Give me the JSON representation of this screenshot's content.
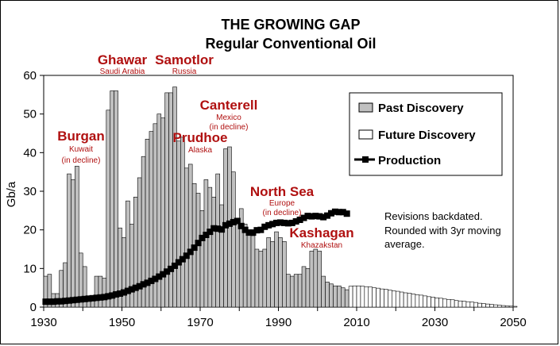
{
  "chart_data": {
    "type": "bar",
    "title": "THE GROWING GAP",
    "subtitle": "Regular Conventional Oil",
    "ylabel": "Gb/a",
    "xlabel": "",
    "ylim": [
      0,
      60
    ],
    "xlim": [
      1930,
      2050
    ],
    "y_ticks": [
      "0",
      "10",
      "20",
      "30",
      "40",
      "50",
      "60"
    ],
    "x_ticks": [
      "1930",
      "1950",
      "1970",
      "1990",
      "2010",
      "2030",
      "2050"
    ],
    "legend": {
      "placement": "top-right",
      "entries": [
        "Past Discovery",
        "Future Discovery",
        "Production"
      ]
    },
    "series": [
      {
        "name": "Past Discovery",
        "x": [
          1930,
          1931,
          1932,
          1933,
          1934,
          1935,
          1936,
          1937,
          1938,
          1939,
          1940,
          1941,
          1942,
          1943,
          1944,
          1945,
          1946,
          1947,
          1948,
          1949,
          1950,
          1951,
          1952,
          1953,
          1954,
          1955,
          1956,
          1957,
          1958,
          1959,
          1960,
          1961,
          1962,
          1963,
          1964,
          1965,
          1966,
          1967,
          1968,
          1969,
          1970,
          1971,
          1972,
          1973,
          1974,
          1975,
          1976,
          1977,
          1978,
          1979,
          1980,
          1981,
          1982,
          1983,
          1984,
          1985,
          1986,
          1987,
          1988,
          1989,
          1990,
          1991,
          1992,
          1993,
          1994,
          1995,
          1996,
          1997,
          1998,
          1999,
          2000,
          2001,
          2002,
          2003,
          2004,
          2005,
          2006,
          2007
        ],
        "values": [
          8,
          8.5,
          3.5,
          3.5,
          9.5,
          11.5,
          34.5,
          33,
          36.5,
          14,
          10.5,
          2.5,
          2.5,
          8,
          8,
          7.5,
          51,
          56,
          56,
          20.5,
          18,
          27.5,
          21.5,
          28.5,
          33.5,
          39,
          43.5,
          45.5,
          47.5,
          50,
          49,
          55.5,
          55.5,
          57,
          43,
          44,
          36,
          37,
          32,
          29.5,
          25,
          33,
          31,
          28.5,
          34.5,
          26.5,
          41,
          41.5,
          35,
          22.5,
          25.5,
          21.5,
          20,
          18.5,
          15,
          14.5,
          15,
          18,
          17,
          19.5,
          18,
          17,
          8.5,
          8,
          8.5,
          8.5,
          10.5,
          10,
          14.5,
          15,
          14.5,
          8,
          6.5,
          6,
          5.5,
          5.5,
          5,
          4.5
        ]
      },
      {
        "name": "Future Discovery",
        "x": [
          2008,
          2009,
          2010,
          2011,
          2012,
          2013,
          2014,
          2015,
          2016,
          2017,
          2018,
          2019,
          2020,
          2021,
          2022,
          2023,
          2024,
          2025,
          2026,
          2027,
          2028,
          2029,
          2030,
          2031,
          2032,
          2033,
          2034,
          2035,
          2036,
          2037,
          2038,
          2039,
          2040,
          2041,
          2042,
          2043,
          2044,
          2045,
          2046,
          2047,
          2048,
          2049,
          2050
        ],
        "values": [
          5.4,
          5.5,
          5.5,
          5.4,
          5.3,
          5.2,
          5.0,
          4.9,
          4.7,
          4.6,
          4.4,
          4.2,
          4.1,
          3.9,
          3.7,
          3.6,
          3.4,
          3.2,
          3.1,
          2.9,
          2.7,
          2.6,
          2.4,
          2.3,
          2.1,
          2.0,
          1.9,
          1.7,
          1.6,
          1.5,
          1.4,
          1.3,
          1.2,
          1.0,
          0.9,
          0.8,
          0.7,
          0.6,
          0.5,
          0.4,
          0.3,
          0.25,
          0.2
        ]
      },
      {
        "name": "Production",
        "x": [
          1930,
          1931,
          1932,
          1933,
          1934,
          1935,
          1936,
          1937,
          1938,
          1939,
          1940,
          1941,
          1942,
          1943,
          1944,
          1945,
          1946,
          1947,
          1948,
          1949,
          1950,
          1951,
          1952,
          1953,
          1954,
          1955,
          1956,
          1957,
          1958,
          1959,
          1960,
          1961,
          1962,
          1963,
          1964,
          1965,
          1966,
          1967,
          1968,
          1969,
          1970,
          1971,
          1972,
          1973,
          1974,
          1975,
          1976,
          1977,
          1978,
          1979,
          1980,
          1981,
          1982,
          1983,
          1984,
          1985,
          1986,
          1987,
          1988,
          1989,
          1990,
          1991,
          1992,
          1993,
          1994,
          1995,
          1996,
          1997,
          1998,
          1999,
          2000,
          2001,
          2002,
          2003,
          2004,
          2005,
          2006,
          2007
        ],
        "values": [
          1.4,
          1.4,
          1.4,
          1.5,
          1.5,
          1.6,
          1.7,
          1.8,
          1.9,
          2.0,
          2.1,
          2.2,
          2.3,
          2.4,
          2.5,
          2.6,
          2.8,
          3.0,
          3.3,
          3.5,
          3.8,
          4.2,
          4.6,
          5.0,
          5.4,
          5.9,
          6.3,
          6.8,
          7.3,
          7.9,
          8.5,
          9.2,
          9.9,
          10.7,
          11.6,
          12.4,
          13.3,
          14.3,
          15.4,
          16.6,
          17.9,
          18.7,
          19.5,
          20.4,
          20.3,
          20.1,
          21.2,
          21.6,
          22.0,
          22.3,
          21.0,
          20.0,
          19.3,
          19.3,
          19.9,
          20.0,
          20.8,
          21.2,
          21.5,
          21.8,
          21.9,
          21.8,
          21.7,
          21.8,
          22.2,
          22.6,
          23.1,
          23.6,
          23.5,
          23.6,
          23.5,
          23.3,
          23.7,
          24.3,
          24.7,
          24.6,
          24.6,
          24.2
        ]
      }
    ],
    "annotations": [
      {
        "id": "burgan",
        "name": "Burgan",
        "country": "Kuwait",
        "note": "(in decline)"
      },
      {
        "id": "ghawar",
        "name": "Ghawar",
        "country": "Saudi Arabia"
      },
      {
        "id": "samotlor",
        "name": "Samotlor",
        "country": "Russia"
      },
      {
        "id": "canterell",
        "name": "Canterell",
        "country": "Mexico",
        "note": "(in decline)"
      },
      {
        "id": "prudhoe",
        "name": "Prudhoe",
        "country": "Alaska"
      },
      {
        "id": "northsea",
        "name": "North Sea",
        "country": "Europe",
        "note": "(in decline)"
      },
      {
        "id": "kashagan",
        "name": "Kashagan",
        "country": "Khazakstan"
      }
    ],
    "notes": [
      "Revisions backdated.",
      "Rounded with 3yr moving",
      "average."
    ]
  },
  "colors": {
    "past_fill": "#c0c0c0",
    "future_fill": "#ffffff",
    "production": "#000000",
    "annotation": "#b01010",
    "plot_bg": "#ffffff"
  }
}
